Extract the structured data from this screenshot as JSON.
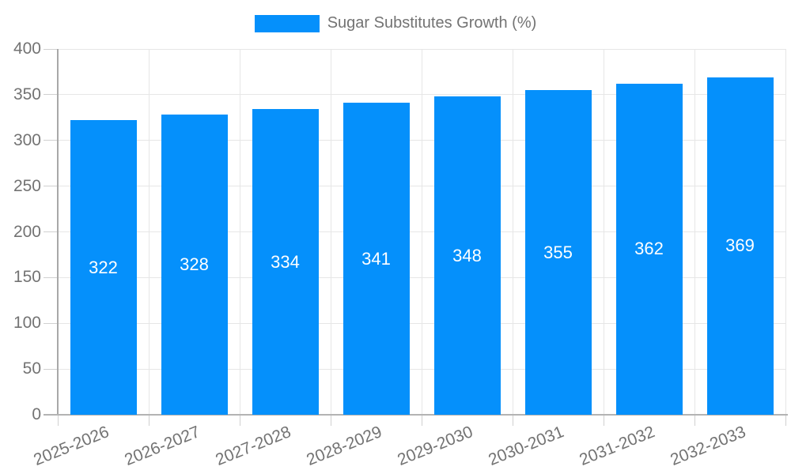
{
  "legend": {
    "label": "Sugar Substitutes Growth (%)",
    "swatch_color": "#0590fb"
  },
  "chart_data": {
    "type": "bar",
    "title": "Sugar Substitutes Growth (%)",
    "categories": [
      "2025-2026",
      "2026-2027",
      "2027-2028",
      "2028-2029",
      "2029-2030",
      "2030-2031",
      "2031-2032",
      "2032-2033"
    ],
    "series": [
      {
        "name": "Sugar Substitutes Growth (%)",
        "values": [
          322,
          328,
          334,
          341,
          348,
          355,
          362,
          369
        ]
      }
    ],
    "value_labels_shown": true,
    "y_ticks": [
      0,
      50,
      100,
      150,
      200,
      250,
      300,
      350,
      400
    ],
    "ylim": [
      0,
      400
    ],
    "xlabel": "",
    "ylabel": "",
    "grid": true,
    "legend_position": "top",
    "x_tick_rotation_deg": -22,
    "bar_color": "#0590fb",
    "value_label_color": "#ffffff",
    "axis_text_color": "#737373",
    "grid_color": "#e6e6e6",
    "axis_line_color": "#a8a8a8"
  }
}
